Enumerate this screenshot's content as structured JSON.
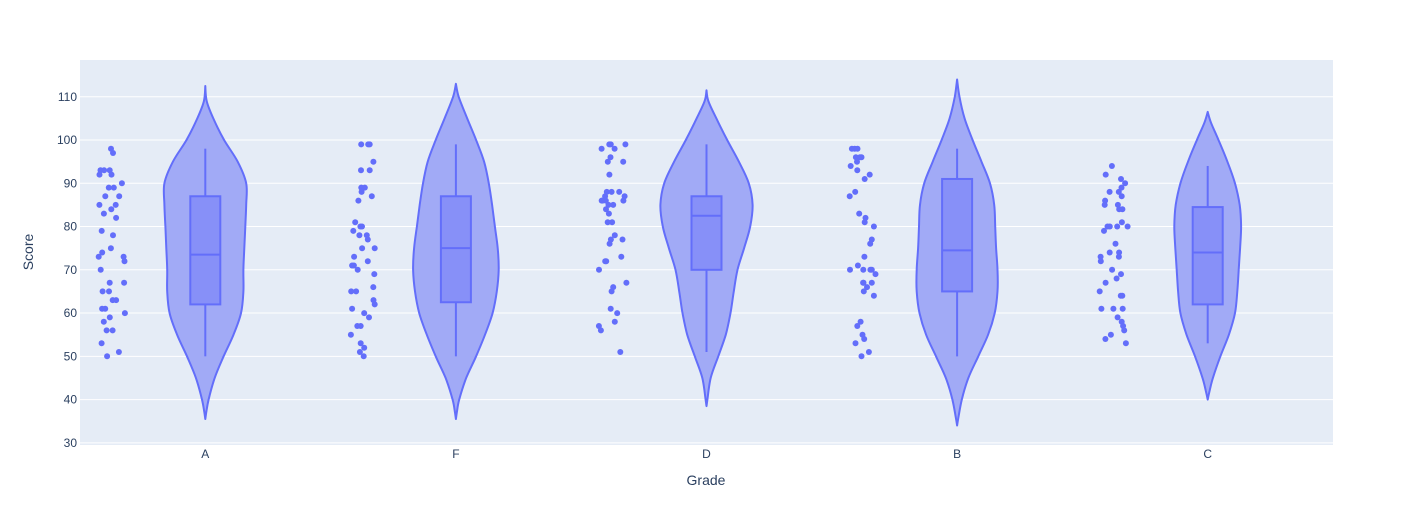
{
  "chart_data": {
    "type": "violin",
    "xlabel": "Grade",
    "ylabel": "Score",
    "ylim": [
      29.5,
      118.5
    ],
    "yticks": [
      30,
      40,
      50,
      60,
      70,
      80,
      90,
      100,
      110
    ],
    "categories": [
      "A",
      "F",
      "D",
      "B",
      "C"
    ],
    "grid": true,
    "colors": {
      "plot_background": "#e5ecf6",
      "violin_fill": "#a1aaf6",
      "violin_line": "#636efa",
      "box_fill": "#8790f8",
      "points": "#636efa",
      "grid": "#ffffff",
      "text": "#2a3f5f"
    },
    "violins": [
      {
        "category": "A",
        "box": {
          "min": 50,
          "q1": 62,
          "median": 73.5,
          "q3": 87,
          "max": 98
        },
        "density": [
          [
            35.5,
            0
          ],
          [
            37,
            0.02
          ],
          [
            40,
            0.07
          ],
          [
            45,
            0.2
          ],
          [
            50,
            0.39
          ],
          [
            55,
            0.6
          ],
          [
            60,
            0.76
          ],
          [
            65,
            0.81
          ],
          [
            70,
            0.81
          ],
          [
            75,
            0.83
          ],
          [
            80,
            0.85
          ],
          [
            85,
            0.87
          ],
          [
            90,
            0.87
          ],
          [
            95,
            0.69
          ],
          [
            100,
            0.4
          ],
          [
            105,
            0.17
          ],
          [
            109,
            0.03
          ],
          [
            112.5,
            0
          ]
        ],
        "points": [
          98,
          97,
          93,
          93,
          93,
          92,
          92,
          90,
          89,
          89,
          87,
          87,
          85,
          85,
          84,
          83,
          82,
          79,
          78,
          75,
          74,
          73,
          73,
          72,
          70,
          67,
          67,
          65,
          65,
          63,
          63,
          61,
          61,
          60,
          59,
          58,
          56,
          56,
          53,
          51,
          50
        ]
      },
      {
        "category": "F",
        "box": {
          "min": 50,
          "q1": 62.5,
          "median": 75,
          "q3": 87,
          "max": 99
        },
        "density": [
          [
            35.5,
            0
          ],
          [
            37,
            0.02
          ],
          [
            40,
            0.07
          ],
          [
            45,
            0.22
          ],
          [
            50,
            0.43
          ],
          [
            55,
            0.62
          ],
          [
            60,
            0.78
          ],
          [
            65,
            0.87
          ],
          [
            70,
            0.91
          ],
          [
            75,
            0.89
          ],
          [
            80,
            0.83
          ],
          [
            85,
            0.77
          ],
          [
            90,
            0.7
          ],
          [
            95,
            0.6
          ],
          [
            100,
            0.43
          ],
          [
            105,
            0.24
          ],
          [
            110,
            0.06
          ],
          [
            113,
            0
          ]
        ],
        "points": [
          99,
          99,
          99,
          95,
          93,
          93,
          89,
          89,
          88,
          87,
          86,
          81,
          80,
          80,
          79,
          78,
          78,
          77,
          75,
          75,
          73,
          72,
          71,
          71,
          70,
          69,
          66,
          65,
          65,
          63,
          62,
          61,
          60,
          59,
          57,
          57,
          55,
          53,
          52,
          51,
          50
        ]
      },
      {
        "category": "D",
        "box": {
          "min": 51,
          "q1": 70,
          "median": 82.5,
          "q3": 87,
          "max": 99
        },
        "density": [
          [
            38.5,
            0
          ],
          [
            40,
            0.02
          ],
          [
            45,
            0.09
          ],
          [
            50,
            0.25
          ],
          [
            55,
            0.41
          ],
          [
            60,
            0.51
          ],
          [
            65,
            0.58
          ],
          [
            70,
            0.66
          ],
          [
            75,
            0.8
          ],
          [
            80,
            0.93
          ],
          [
            85,
            0.98
          ],
          [
            90,
            0.9
          ],
          [
            95,
            0.69
          ],
          [
            100,
            0.44
          ],
          [
            105,
            0.21
          ],
          [
            109,
            0.04
          ],
          [
            111.5,
            0
          ]
        ],
        "points": [
          99,
          99,
          99,
          98,
          98,
          96,
          95,
          95,
          92,
          88,
          88,
          88,
          87,
          87,
          86,
          86,
          86,
          86,
          85,
          85,
          84,
          83,
          81,
          81,
          78,
          77,
          77,
          76,
          73,
          72,
          72,
          70,
          67,
          66,
          65,
          61,
          60,
          58,
          57,
          56,
          51
        ]
      },
      {
        "category": "B",
        "box": {
          "min": 50,
          "q1": 65,
          "median": 74.5,
          "q3": 91,
          "max": 98
        },
        "density": [
          [
            34,
            0
          ],
          [
            36,
            0.03
          ],
          [
            40,
            0.1
          ],
          [
            45,
            0.24
          ],
          [
            50,
            0.45
          ],
          [
            55,
            0.66
          ],
          [
            60,
            0.8
          ],
          [
            65,
            0.86
          ],
          [
            70,
            0.86
          ],
          [
            75,
            0.83
          ],
          [
            80,
            0.81
          ],
          [
            85,
            0.79
          ],
          [
            90,
            0.7
          ],
          [
            95,
            0.52
          ],
          [
            100,
            0.33
          ],
          [
            105,
            0.16
          ],
          [
            110,
            0.05
          ],
          [
            114,
            0
          ]
        ],
        "points": [
          98,
          98,
          98,
          96,
          96,
          96,
          95,
          94,
          93,
          92,
          91,
          88,
          87,
          83,
          82,
          81,
          80,
          77,
          76,
          73,
          71,
          70,
          70,
          70,
          70,
          69,
          67,
          67,
          67,
          66,
          65,
          64,
          58,
          57,
          55,
          54,
          53,
          51,
          50
        ]
      },
      {
        "category": "C",
        "box": {
          "min": 53,
          "q1": 62,
          "median": 74,
          "q3": 84.5,
          "max": 94
        },
        "density": [
          [
            40,
            0
          ],
          [
            42,
            0.04
          ],
          [
            45,
            0.11
          ],
          [
            50,
            0.27
          ],
          [
            55,
            0.45
          ],
          [
            60,
            0.58
          ],
          [
            65,
            0.63
          ],
          [
            70,
            0.66
          ],
          [
            75,
            0.69
          ],
          [
            80,
            0.71
          ],
          [
            85,
            0.68
          ],
          [
            90,
            0.58
          ],
          [
            95,
            0.42
          ],
          [
            100,
            0.23
          ],
          [
            104,
            0.07
          ],
          [
            106.5,
            0
          ]
        ],
        "points": [
          94,
          92,
          91,
          90,
          89,
          88,
          88,
          87,
          86,
          85,
          85,
          84,
          84,
          81,
          80,
          80,
          80,
          80,
          79,
          76,
          74,
          74,
          73,
          73,
          72,
          70,
          69,
          68,
          67,
          65,
          64,
          64,
          61,
          61,
          61,
          59,
          58,
          57,
          56,
          55,
          54,
          53
        ]
      }
    ]
  }
}
